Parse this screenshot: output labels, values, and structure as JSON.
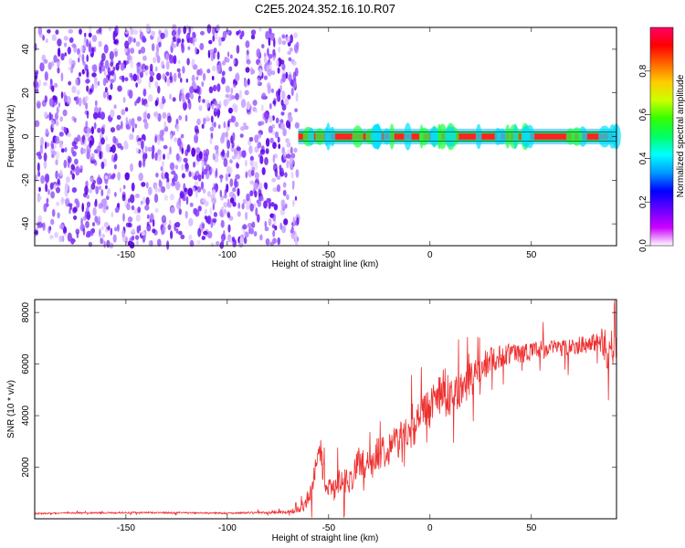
{
  "title": "C2E5.2024.352.16.10.R07",
  "chart_data": [
    {
      "type": "heatmap",
      "xlabel": "Height of straight line (km)",
      "ylabel": "Frequency (Hz)",
      "xlim": [
        -195,
        92
      ],
      "ylim": [
        -50,
        50
      ],
      "xticks": [
        -150,
        -100,
        -50,
        0,
        50
      ],
      "yticks": [
        -40,
        -20,
        0,
        20,
        40
      ],
      "colorbar": {
        "label": "Normalized spectral amplitude",
        "range": [
          0,
          1
        ],
        "ticks": [
          0.0,
          0.2,
          0.4,
          0.6,
          0.8
        ],
        "tick_labels": [
          "0.0",
          "0.2",
          "0.4",
          "0.6",
          "0.8"
        ],
        "colormap": [
          "#ffffff",
          "#cc00ff",
          "#6600ff",
          "#0000ff",
          "#0099ff",
          "#00ffff",
          "#00ff66",
          "#33ff00",
          "#ccff00",
          "#ffcc00",
          "#ff6600",
          "#ff0000",
          "#ff0066"
        ]
      },
      "regions": {
        "noise": {
          "x": [
            -195,
            -65
          ],
          "y": [
            -50,
            50
          ],
          "amplitude": 0.1
        },
        "signal_band": {
          "x": [
            -65,
            92
          ],
          "center_hz": 0,
          "halfwidth_hz": 2,
          "amplitude": 0.95
        }
      }
    },
    {
      "type": "line",
      "xlabel": "Height of straight line (km)",
      "ylabel": "SNR (10 * v/v)",
      "xlim": [
        -195,
        92
      ],
      "ylim": [
        0,
        8500
      ],
      "xticks": [
        -150,
        -100,
        -50,
        0,
        50
      ],
      "yticks": [
        2000,
        4000,
        6000,
        8000
      ],
      "color": "#ee3030",
      "series": [
        {
          "x": [
            -195,
            -180,
            -160,
            -140,
            -120,
            -100,
            -80,
            -70,
            -62,
            -58,
            -55,
            -52,
            -48,
            -44,
            -40,
            -35,
            -30,
            -25,
            -20,
            -15,
            -10,
            -5,
            0,
            5,
            10,
            15,
            20,
            25,
            30,
            40,
            50,
            60,
            70,
            80,
            85,
            88,
            92
          ],
          "y": [
            200,
            220,
            230,
            240,
            230,
            220,
            240,
            260,
            400,
            1200,
            3000,
            1500,
            1000,
            1600,
            1400,
            2200,
            2000,
            2600,
            2800,
            3100,
            3400,
            3800,
            4400,
            4700,
            4800,
            5000,
            5400,
            5800,
            6200,
            6400,
            6500,
            6600,
            6700,
            6800,
            6900,
            6500,
            6700
          ],
          "noise_amplitude": [
            30,
            30,
            30,
            30,
            30,
            30,
            40,
            60,
            200,
            400,
            700,
            500,
            400,
            500,
            500,
            600,
            600,
            700,
            700,
            700,
            700,
            800,
            900,
            800,
            800,
            700,
            700,
            600,
            500,
            400,
            400,
            350,
            350,
            350,
            500,
            900,
            600
          ]
        }
      ]
    }
  ]
}
